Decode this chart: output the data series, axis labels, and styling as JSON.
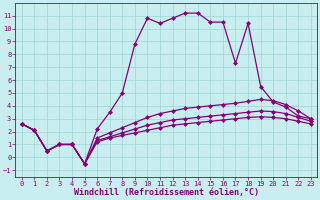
{
  "xlabel": "Windchill (Refroidissement éolien,°C)",
  "background_color": "#c8eef0",
  "grid_color": "#9dd5d5",
  "line_color": "#880077",
  "xlim": [
    -0.5,
    23.5
  ],
  "ylim": [
    -1.5,
    12.0
  ],
  "xticks": [
    0,
    1,
    2,
    3,
    4,
    5,
    6,
    7,
    8,
    9,
    10,
    11,
    12,
    13,
    14,
    15,
    16,
    17,
    18,
    19,
    20,
    21,
    22,
    23
  ],
  "yticks": [
    -1,
    0,
    1,
    2,
    3,
    4,
    5,
    6,
    7,
    8,
    9,
    10,
    11
  ],
  "line1_x": [
    0,
    1,
    2,
    3,
    4,
    5,
    6,
    7,
    8,
    9,
    10,
    11,
    12,
    13,
    14,
    15,
    16,
    17,
    18,
    19,
    20,
    21,
    22,
    23
  ],
  "line1_y": [
    2.6,
    2.1,
    0.5,
    1.0,
    1.0,
    -0.5,
    2.2,
    3.5,
    5.0,
    8.8,
    10.8,
    10.4,
    10.8,
    11.2,
    11.2,
    10.5,
    10.5,
    7.3,
    10.4,
    5.5,
    4.3,
    3.9,
    3.2,
    3.0
  ],
  "line2_x": [
    0,
    1,
    2,
    3,
    4,
    5,
    6,
    7,
    8,
    9,
    10,
    11,
    12,
    13,
    14,
    15,
    16,
    17,
    18,
    19,
    20,
    21,
    22,
    23
  ],
  "line2_y": [
    2.6,
    2.1,
    0.5,
    1.0,
    1.0,
    -0.5,
    1.5,
    1.9,
    2.3,
    2.7,
    3.1,
    3.4,
    3.6,
    3.8,
    3.9,
    4.0,
    4.1,
    4.2,
    4.35,
    4.5,
    4.4,
    4.1,
    3.6,
    3.0
  ],
  "line3_x": [
    0,
    1,
    2,
    3,
    4,
    5,
    6,
    7,
    8,
    9,
    10,
    11,
    12,
    13,
    14,
    15,
    16,
    17,
    18,
    19,
    20,
    21,
    22,
    23
  ],
  "line3_y": [
    2.6,
    2.1,
    0.5,
    1.0,
    1.0,
    -0.5,
    1.3,
    1.6,
    1.9,
    2.2,
    2.5,
    2.7,
    2.9,
    3.0,
    3.1,
    3.2,
    3.3,
    3.4,
    3.5,
    3.6,
    3.55,
    3.4,
    3.1,
    2.8
  ],
  "line4_x": [
    0,
    1,
    2,
    3,
    4,
    5,
    6,
    7,
    8,
    9,
    10,
    11,
    12,
    13,
    14,
    15,
    16,
    17,
    18,
    19,
    20,
    21,
    22,
    23
  ],
  "line4_y": [
    2.6,
    2.1,
    0.5,
    1.0,
    1.0,
    -0.5,
    1.2,
    1.5,
    1.7,
    1.9,
    2.1,
    2.3,
    2.5,
    2.6,
    2.7,
    2.8,
    2.9,
    3.0,
    3.1,
    3.15,
    3.1,
    3.0,
    2.8,
    2.6
  ],
  "marker_size": 2.5,
  "line_width": 0.9,
  "tick_fontsize": 5,
  "label_fontsize": 6
}
